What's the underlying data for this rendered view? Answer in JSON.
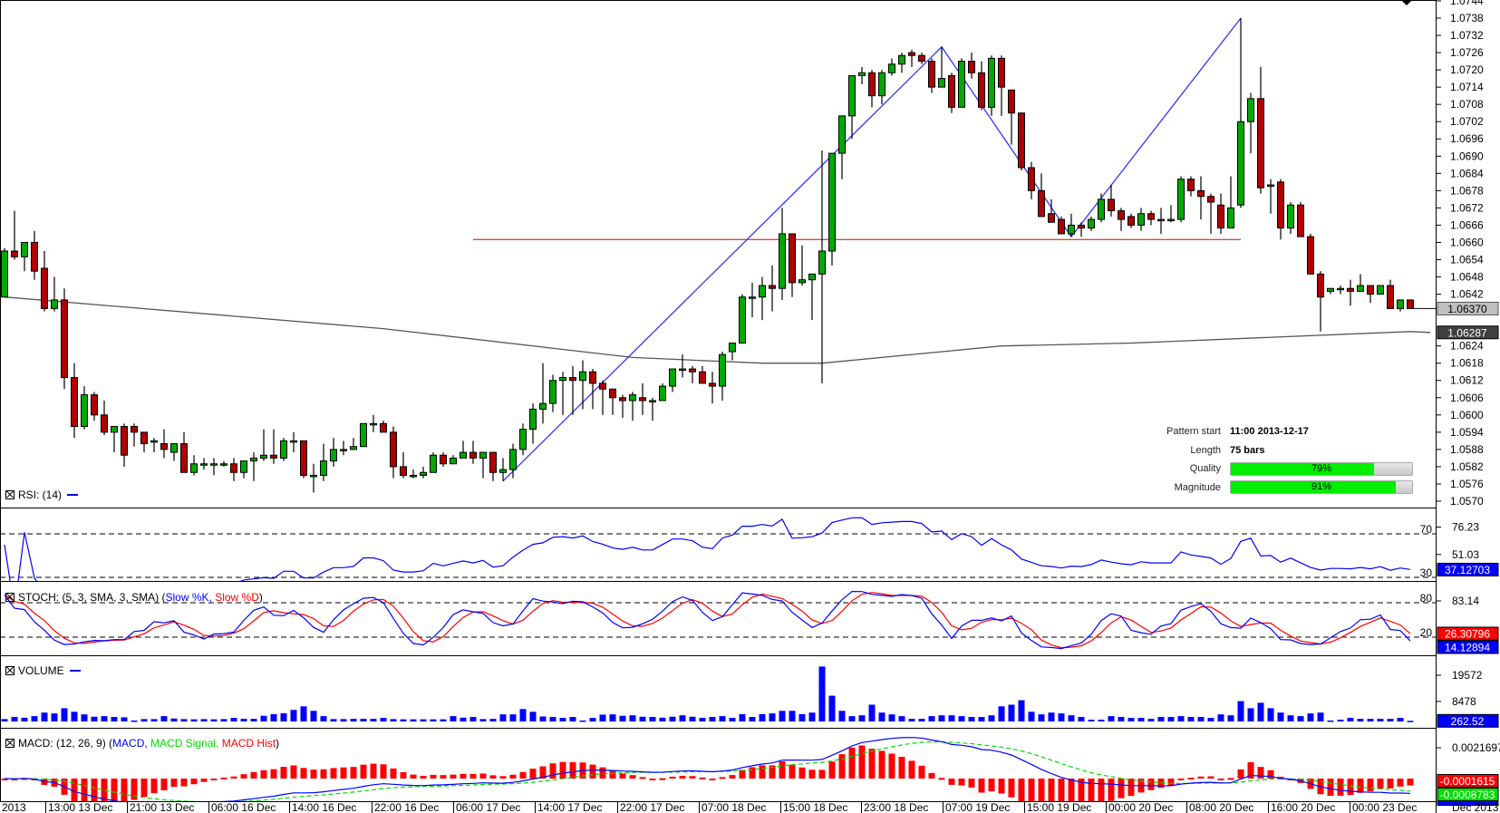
{
  "colors": {
    "bull": "#00a800",
    "bear": "#b00000",
    "pattern_line": "#3333ff",
    "support_line": "#e00000",
    "ma_line": "#555555",
    "rsi": "#0000ff",
    "stoch_k": "#0000ff",
    "stoch_d": "#ff0000",
    "volume": "#0000ff",
    "macd": "#0000ff",
    "macd_signal": "#00dd00",
    "macd_hist": "#ff0000"
  },
  "price_axis": {
    "ticks": [
      "1.0744",
      "1.0738",
      "1.0732",
      "1.0726",
      "1.0720",
      "1.0714",
      "1.0708",
      "1.0702",
      "1.0696",
      "1.0690",
      "1.0684",
      "1.0678",
      "1.0672",
      "1.0666",
      "1.0660",
      "1.0654",
      "1.0648",
      "1.0642",
      "1.0624",
      "1.0618",
      "1.0612",
      "1.0606",
      "1.0600",
      "1.0594",
      "1.0588",
      "1.0582",
      "1.0576",
      "1.0570"
    ],
    "current_price": "1.06370",
    "ma_value": "1.06287"
  },
  "pattern": {
    "start_label": "Pattern start",
    "start_value": "11:00 2013-12-17",
    "length_label": "Length",
    "length_value": "75 bars",
    "quality_label": "Quality",
    "quality_pct": 79,
    "quality_text": "79%",
    "magnitude_label": "Magnitude",
    "magnitude_pct": 91,
    "magnitude_text": "91%",
    "zigzag": [
      [
        50,
        1.0577
      ],
      [
        94,
        1.0728
      ],
      [
        107,
        1.0662
      ],
      [
        124,
        1.0738
      ]
    ],
    "support": {
      "price": 1.0661,
      "from": 47,
      "to": 124
    }
  },
  "chart_data": {
    "type": "candlestick",
    "bars": [
      [
        1.0641,
        1.0658,
        1.0641,
        1.0657
      ],
      [
        1.0657,
        1.0671,
        1.0654,
        1.0655
      ],
      [
        1.0655,
        1.066,
        1.065,
        1.066
      ],
      [
        1.066,
        1.0664,
        1.0647,
        1.065
      ],
      [
        1.0651,
        1.0657,
        1.0636,
        1.0637
      ],
      [
        1.0637,
        1.0648,
        1.0636,
        1.064
      ],
      [
        1.064,
        1.0644,
        1.0609,
        1.0613
      ],
      [
        1.0613,
        1.0618,
        1.0592,
        1.0596
      ],
      [
        1.0596,
        1.061,
        1.0595,
        1.0607
      ],
      [
        1.0607,
        1.0608,
        1.0598,
        1.06
      ],
      [
        1.06,
        1.0605,
        1.0593,
        1.0594
      ],
      [
        1.0594,
        1.0596,
        1.0587,
        1.0596
      ],
      [
        1.0596,
        1.0597,
        1.0582,
        1.0586
      ],
      [
        1.0596,
        1.0597,
        1.0589,
        1.0594
      ],
      [
        1.0594,
        1.0594,
        1.0587,
        1.059
      ],
      [
        1.0591,
        1.0592,
        1.0587,
        1.0591
      ],
      [
        1.059,
        1.0595,
        1.0585,
        1.0588
      ],
      [
        1.0587,
        1.059,
        1.0584,
        1.059
      ],
      [
        1.059,
        1.0594,
        1.058,
        1.058
      ],
      [
        1.058,
        1.0586,
        1.0579,
        1.0583
      ],
      [
        1.0583,
        1.0585,
        1.0581,
        1.0583
      ],
      [
        1.0583,
        1.0585,
        1.0579,
        1.0583
      ],
      [
        1.0583,
        1.0584,
        1.0582,
        1.0583
      ],
      [
        1.0583,
        1.0585,
        1.0577,
        1.058
      ],
      [
        1.058,
        1.0584,
        1.0578,
        1.0584
      ],
      [
        1.0584,
        1.0587,
        1.0577,
        1.0585
      ],
      [
        1.0585,
        1.0595,
        1.0584,
        1.0586
      ],
      [
        1.0586,
        1.0595,
        1.0583,
        1.0585
      ],
      [
        1.0585,
        1.0592,
        1.0584,
        1.0591
      ],
      [
        1.0591,
        1.0594,
        1.0587,
        1.0591
      ],
      [
        1.0591,
        1.0591,
        1.0578,
        1.0579
      ],
      [
        1.0579,
        1.0583,
        1.0573,
        1.0579
      ],
      [
        1.0579,
        1.059,
        1.0577,
        1.0584
      ],
      [
        1.0584,
        1.0592,
        1.0582,
        1.0588
      ],
      [
        1.0588,
        1.0591,
        1.0586,
        1.0588
      ],
      [
        1.0588,
        1.0592,
        1.0588,
        1.0589
      ],
      [
        1.0589,
        1.0597,
        1.0589,
        1.0597
      ],
      [
        1.0597,
        1.06,
        1.0594,
        1.0597
      ],
      [
        1.0597,
        1.0598,
        1.0594,
        1.0594
      ],
      [
        1.0594,
        1.0596,
        1.0578,
        1.0582
      ],
      [
        1.0582,
        1.0587,
        1.0578,
        1.0579
      ],
      [
        1.0579,
        1.0581,
        1.0578,
        1.0579
      ],
      [
        1.0579,
        1.0582,
        1.0578,
        1.058
      ],
      [
        1.058,
        1.0587,
        1.058,
        1.0586
      ],
      [
        1.0586,
        1.0587,
        1.0582,
        1.0583
      ],
      [
        1.0583,
        1.0586,
        1.0583,
        1.0585
      ],
      [
        1.0585,
        1.0591,
        1.0585,
        1.0587
      ],
      [
        1.0587,
        1.0591,
        1.0583,
        1.0585
      ],
      [
        1.0585,
        1.0587,
        1.0578,
        1.0587
      ],
      [
        1.0587,
        1.0587,
        1.0577,
        1.058
      ],
      [
        1.058,
        1.0585,
        1.0577,
        1.0581
      ],
      [
        1.0581,
        1.059,
        1.0578,
        1.0588
      ],
      [
        1.0588,
        1.0597,
        1.0586,
        1.0595
      ],
      [
        1.0595,
        1.0604,
        1.059,
        1.0602
      ],
      [
        1.0602,
        1.0618,
        1.0597,
        1.0604
      ],
      [
        1.0604,
        1.0614,
        1.0601,
        1.0612
      ],
      [
        1.0612,
        1.0615,
        1.06,
        1.0613
      ],
      [
        1.0613,
        1.0617,
        1.06,
        1.0612
      ],
      [
        1.0612,
        1.0619,
        1.0602,
        1.0615
      ],
      [
        1.0615,
        1.0616,
        1.0602,
        1.0611
      ],
      [
        1.0611,
        1.0612,
        1.06,
        1.0609
      ],
      [
        1.0609,
        1.0609,
        1.06,
        1.0606
      ],
      [
        1.0606,
        1.0607,
        1.0599,
        1.0605
      ],
      [
        1.0605,
        1.0608,
        1.0598,
        1.0607
      ],
      [
        1.0606,
        1.0611,
        1.06,
        1.0605
      ],
      [
        1.0605,
        1.0606,
        1.0598,
        1.0605
      ],
      [
        1.0605,
        1.0611,
        1.0605,
        1.061
      ],
      [
        1.061,
        1.0616,
        1.0608,
        1.0616
      ],
      [
        1.0616,
        1.0621,
        1.0613,
        1.0616
      ],
      [
        1.0616,
        1.0617,
        1.0611,
        1.0615
      ],
      [
        1.0615,
        1.0617,
        1.0611,
        1.0611
      ],
      [
        1.0611,
        1.0615,
        1.0604,
        1.061
      ],
      [
        1.061,
        1.0622,
        1.0605,
        1.0621
      ],
      [
        1.0622,
        1.0625,
        1.0619,
        1.0625
      ],
      [
        1.0625,
        1.0642,
        1.0625,
        1.0641
      ],
      [
        1.0641,
        1.0646,
        1.0634,
        1.0641
      ],
      [
        1.0641,
        1.0648,
        1.0633,
        1.0645
      ],
      [
        1.0645,
        1.0652,
        1.0636,
        1.0644
      ],
      [
        1.0644,
        1.0672,
        1.064,
        1.0663
      ],
      [
        1.0663,
        1.0663,
        1.0641,
        1.0646
      ],
      [
        1.0646,
        1.0659,
        1.0645,
        1.0647
      ],
      [
        1.0647,
        1.0649,
        1.0633,
        1.0649
      ],
      [
        1.0649,
        1.0692,
        1.0611,
        1.0657
      ],
      [
        1.0657,
        1.0691,
        1.0652,
        1.0691
      ],
      [
        1.0691,
        1.0704,
        1.0682,
        1.0704
      ],
      [
        1.0704,
        1.0718,
        1.0696,
        1.0718
      ],
      [
        1.0718,
        1.0721,
        1.0715,
        1.0719
      ],
      [
        1.0719,
        1.072,
        1.0707,
        1.0711
      ],
      [
        1.0711,
        1.072,
        1.0708,
        1.0719
      ],
      [
        1.0719,
        1.0724,
        1.0718,
        1.0722
      ],
      [
        1.0722,
        1.0726,
        1.0719,
        1.0725
      ],
      [
        1.0726,
        1.0727,
        1.0721,
        1.0725
      ],
      [
        1.0725,
        1.0726,
        1.0722,
        1.0723
      ],
      [
        1.0723,
        1.0724,
        1.0712,
        1.0714
      ],
      [
        1.0714,
        1.0728,
        1.0714,
        1.0717
      ],
      [
        1.0718,
        1.0719,
        1.0705,
        1.0707
      ],
      [
        1.0707,
        1.0724,
        1.0707,
        1.0723
      ],
      [
        1.0723,
        1.0726,
        1.0717,
        1.0719
      ],
      [
        1.0719,
        1.0723,
        1.0706,
        1.0707
      ],
      [
        1.0707,
        1.0725,
        1.0704,
        1.0724
      ],
      [
        1.0724,
        1.0725,
        1.0704,
        1.0714
      ],
      [
        1.0713,
        1.0713,
        1.0694,
        1.0705
      ],
      [
        1.0705,
        1.0705,
        1.0685,
        1.0686
      ],
      [
        1.0686,
        1.0688,
        1.0675,
        1.0678
      ],
      [
        1.0678,
        1.0684,
        1.0669,
        1.0669
      ],
      [
        1.067,
        1.0675,
        1.0667,
        1.0667
      ],
      [
        1.0668,
        1.0669,
        1.0663,
        1.0663
      ],
      [
        1.0663,
        1.067,
        1.0662,
        1.0666
      ],
      [
        1.0666,
        1.0667,
        1.0662,
        1.0665
      ],
      [
        1.0665,
        1.0669,
        1.0664,
        1.0668
      ],
      [
        1.0668,
        1.0677,
        1.0667,
        1.0675
      ],
      [
        1.0675,
        1.068,
        1.0669,
        1.0671
      ],
      [
        1.0671,
        1.0672,
        1.0664,
        1.0668
      ],
      [
        1.0669,
        1.067,
        1.0665,
        1.0666
      ],
      [
        1.0666,
        1.0672,
        1.0664,
        1.067
      ],
      [
        1.067,
        1.0671,
        1.0666,
        1.0668
      ],
      [
        1.0668,
        1.0672,
        1.0663,
        1.0668
      ],
      [
        1.0668,
        1.0673,
        1.0667,
        1.0668
      ],
      [
        1.0668,
        1.0683,
        1.0667,
        1.0682
      ],
      [
        1.0682,
        1.0683,
        1.0676,
        1.0678
      ],
      [
        1.0678,
        1.0683,
        1.0668,
        1.0676
      ],
      [
        1.0676,
        1.0677,
        1.0663,
        1.0674
      ],
      [
        1.0673,
        1.0677,
        1.0663,
        1.0665
      ],
      [
        1.0665,
        1.0683,
        1.0665,
        1.0672
      ],
      [
        1.0673,
        1.0738,
        1.0672,
        1.0702
      ],
      [
        1.0702,
        1.0712,
        1.0691,
        1.071
      ],
      [
        1.071,
        1.0721,
        1.0677,
        1.0679
      ],
      [
        1.068,
        1.0682,
        1.067,
        1.068
      ],
      [
        1.0681,
        1.0682,
        1.0661,
        1.0665
      ],
      [
        1.0665,
        1.0674,
        1.0663,
        1.0673
      ],
      [
        1.0673,
        1.0674,
        1.0662,
        1.0662
      ],
      [
        1.0662,
        1.0663,
        1.0649,
        1.0649
      ],
      [
        1.0649,
        1.065,
        1.0629,
        1.0641
      ],
      [
        1.0643,
        1.0644,
        1.0642,
        1.0644
      ],
      [
        1.0644,
        1.0645,
        1.0642,
        1.0644
      ],
      [
        1.0644,
        1.0647,
        1.0638,
        1.0643
      ],
      [
        1.0643,
        1.0649,
        1.0643,
        1.0645
      ],
      [
        1.0645,
        1.0645,
        1.0639,
        1.0642
      ],
      [
        1.0642,
        1.0645,
        1.0642,
        1.0645
      ],
      [
        1.0645,
        1.0647,
        1.0637,
        1.0637
      ],
      [
        1.0637,
        1.064,
        1.0636,
        1.064
      ],
      [
        1.064,
        1.064,
        1.0637,
        1.0637
      ]
    ],
    "ma": [
      [
        0,
        1.0641
      ],
      [
        38,
        1.063
      ],
      [
        63,
        1.062
      ],
      [
        76,
        1.0618
      ],
      [
        82,
        1.0618
      ],
      [
        100,
        1.0624
      ],
      [
        113,
        1.0625
      ],
      [
        141,
        1.0629
      ],
      [
        143,
        1.06287
      ]
    ],
    "volume": [
      1000,
      1900,
      1600,
      2250,
      3750,
      3400,
      5600,
      4100,
      3000,
      2000,
      2250,
      1900,
      1750,
      400,
      1000,
      1000,
      2250,
      1250,
      1000,
      900,
      1000,
      900,
      1000,
      1500,
      1100,
      1100,
      2400,
      3100,
      3500,
      4900,
      6400,
      4500,
      2250,
      1000,
      1000,
      1100,
      1100,
      1100,
      1500,
      1000,
      900,
      900,
      900,
      900,
      900,
      2250,
      1600,
      1900,
      1000,
      1100,
      3000,
      3000,
      5250,
      4100,
      2100,
      1900,
      1500,
      1900,
      400,
      1500,
      2900,
      3000,
      2400,
      2600,
      2000,
      1900,
      1600,
      2000,
      2600,
      2000,
      1500,
      1900,
      2250,
      1500,
      3100,
      1900,
      3100,
      3400,
      4500,
      4500,
      3100,
      3750,
      23250,
      10900,
      4500,
      2250,
      2600,
      7100,
      3750,
      3000,
      2250,
      1100,
      1100,
      2250,
      2600,
      2600,
      2250,
      1900,
      1900,
      2600,
      6400,
      7100,
      9000,
      4100,
      3000,
      3750,
      3400,
      2600,
      1900,
      750,
      750,
      2250,
      1900,
      1500,
      1500,
      1100,
      1900,
      1900,
      2250,
      1900,
      1900,
      1500,
      3000,
      2600,
      8600,
      5600,
      7900,
      5600,
      3750,
      2600,
      2250,
      3400,
      3750,
      400,
      750,
      1500,
      1100,
      1100,
      1100,
      1100,
      1500,
      262.52
    ],
    "time_labels": [
      "2013",
      "13:00 13 Dec",
      "21:00 13 Dec",
      "06:00 16 Dec",
      "14:00 16 Dec",
      "22:00 16 Dec",
      "06:00 17 Dec",
      "14:00 17 Dec",
      "22:00 17 Dec",
      "07:00 18 Dec",
      "15:00 18 Dec",
      "23:00 18 Dec",
      "07:00 19 Dec",
      "15:00 19 Dec",
      "00:00 20 Dec",
      "08:00 20 Dec",
      "16:00 20 Dec",
      "00:00 23 Dec"
    ],
    "axis_period": "Dec 2013",
    "ylim": [
      1.057,
      1.0744
    ]
  },
  "panels": {
    "rsi": {
      "title": "RSI: (14)",
      "levels": [
        {
          "v": 70,
          "t": "70"
        },
        {
          "v": 30,
          "t": "30"
        }
      ],
      "ticks": [
        {
          "v": 76.23,
          "t": "76.23"
        },
        {
          "v": 51.03,
          "t": "51.03"
        }
      ],
      "value": "37.12703",
      "value_num": 37.12703
    },
    "stoch": {
      "title": "STOCH: (5, 3, SMA, 3, SMA) (",
      "k_label": "Slow %K,",
      "d_label": "Slow %D",
      ")": ")",
      "levels": [
        {
          "v": 80,
          "t": "80"
        },
        {
          "v": 20,
          "t": "20"
        }
      ],
      "ticks": [
        {
          "v": 83.14,
          "t": "83.14"
        }
      ],
      "d_value": "26.30796",
      "d_num": 26.30796,
      "k_value": "14.12894",
      "k_num": 14.12894
    },
    "volume": {
      "title": "VOLUME",
      "ticks": [
        {
          "v": 19572,
          "t": "19572"
        },
        {
          "v": 8478,
          "t": "8478"
        }
      ],
      "value": "262.52",
      "value_num": 262.52
    },
    "macd": {
      "title": "MACD: (12, 26, 9) (",
      "macd_label": "MACD,",
      "signal_label": "MACD Signal,",
      "hist_label": "MACD Hist",
      ")": ")",
      "ticks": [
        {
          "v": 0.0021697,
          "t": "0.0021697"
        }
      ],
      "hist_value": "-0.0001615",
      "hist_num": -0.0001615,
      "signal_value": "-0.0008783",
      "signal_num": -0.0008783
    }
  }
}
